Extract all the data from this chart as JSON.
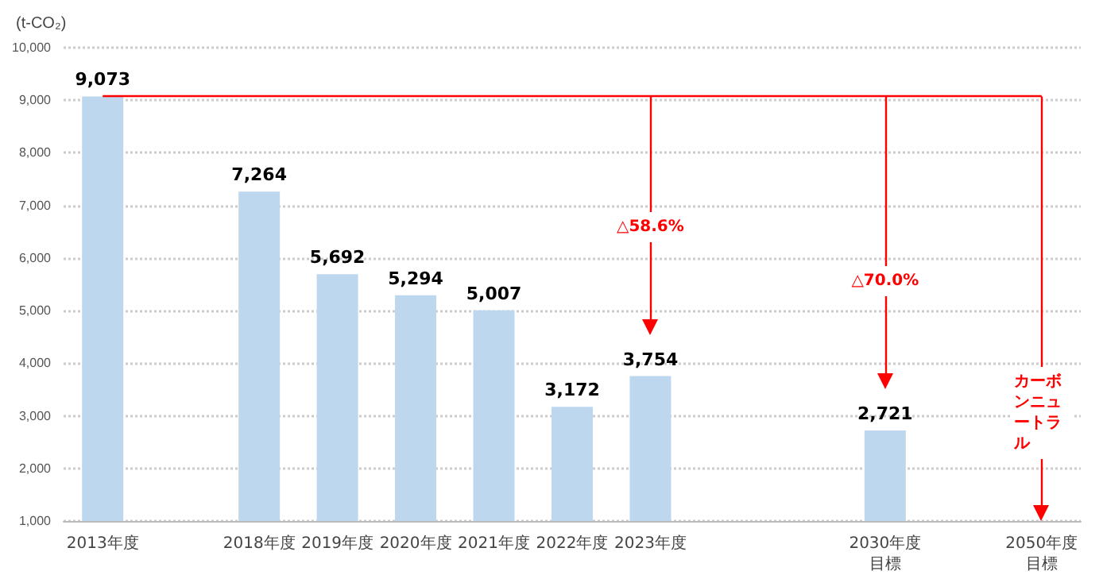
{
  "chart_data": {
    "type": "bar",
    "ylabel": "(t-CO₂)",
    "categories": [
      "2013年度",
      null,
      "2018年度",
      "2019年度",
      "2020年度",
      "2021年度",
      "2022年度",
      "2023年度",
      null,
      null,
      "2030年度目標",
      null,
      "2050年度目標"
    ],
    "values": [
      9073,
      null,
      7264,
      5692,
      5294,
      5007,
      3172,
      3754,
      null,
      null,
      2721,
      null,
      null
    ],
    "value_labels": [
      "9,073",
      null,
      "7,264",
      "5,692",
      "5,294",
      "5,007",
      "3,172",
      "3,754",
      null,
      null,
      "2,721",
      null,
      null
    ],
    "color": "#bdd7ee",
    "ylim": [
      1000,
      10000
    ],
    "yticks": [
      {
        "value": 1000,
        "label": "1,000"
      },
      {
        "value": 2000,
        "label": "2,000"
      },
      {
        "value": 3000,
        "label": "3,000"
      },
      {
        "value": 4000,
        "label": "4,000"
      },
      {
        "value": 5000,
        "label": "5,000"
      },
      {
        "value": 6000,
        "label": "6,000"
      },
      {
        "value": 7000,
        "label": "7,000"
      },
      {
        "value": 8000,
        "label": "8,000"
      },
      {
        "value": 9000,
        "label": "9,000"
      },
      {
        "value": 10000,
        "label": "10,000"
      }
    ],
    "grid": "y",
    "ref_lines": [
      {
        "axis": "y",
        "value": 9073,
        "color": "#ff0000"
      },
      {
        "axis": "x",
        "value": "2023年度",
        "color": "#ff0000"
      },
      {
        "axis": "x",
        "value": "2030年度目標",
        "color": "#ff0000"
      },
      {
        "axis": "x",
        "value": "2050年度目標",
        "color": "#ff0000"
      }
    ],
    "annotations": [
      "△58.6%",
      "△70.0%",
      "カーボンニュートラル"
    ]
  }
}
